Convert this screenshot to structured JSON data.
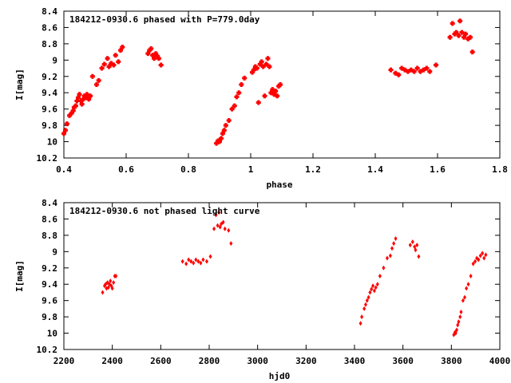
{
  "chart_data": [
    {
      "type": "scatter",
      "title": "184212-0930.6 phased with P=779.0day",
      "xlabel": "phase",
      "ylabel": "I[mag]",
      "xlim": [
        0.4,
        1.8
      ],
      "ylim": [
        8.4,
        10.2
      ],
      "y_inverted": true,
      "grid": false,
      "legend": "none",
      "marker": "plus",
      "color": "#ff0000",
      "xticks": [
        "0.4",
        "0.6",
        "0.8",
        "1",
        "1.2",
        "1.4",
        "1.6",
        "1.8"
      ],
      "yticks": [
        "8.4",
        "8.6",
        "8.8",
        "9",
        "9.2",
        "9.4",
        "9.6",
        "9.8",
        "10",
        "10.2"
      ],
      "series": [
        {
          "x": [
            0.4,
            0.405,
            0.41,
            0.418,
            0.425,
            0.43,
            0.433,
            0.438,
            0.442,
            0.446,
            0.45,
            0.455,
            0.458,
            0.462,
            0.466,
            0.47,
            0.474,
            0.48,
            0.485,
            0.492,
            0.505,
            0.512,
            0.522,
            0.53,
            0.54,
            0.545,
            0.552,
            0.56,
            0.566,
            0.575,
            0.582,
            0.588,
            0.67,
            0.675,
            0.68,
            0.685,
            0.69,
            0.695,
            0.7,
            0.705,
            0.712,
            0.89,
            0.895,
            0.9,
            0.905,
            0.91,
            0.915,
            0.92,
            0.93,
            0.94,
            0.948,
            0.955,
            0.962,
            0.97,
            0.98,
            1.005,
            1.01,
            1.015,
            1.02,
            1.025,
            1.03,
            1.035,
            1.04,
            1.045,
            1.05,
            1.055,
            1.06,
            1.065,
            1.07,
            1.075,
            1.08,
            1.085,
            1.09,
            1.095,
            1.45,
            1.465,
            1.475,
            1.485,
            1.495,
            1.505,
            1.515,
            1.525,
            1.535,
            1.545,
            1.555,
            1.565,
            1.575,
            1.595,
            1.64,
            1.648,
            1.655,
            1.66,
            1.668,
            1.672,
            1.678,
            1.685,
            1.69,
            1.698,
            1.705,
            1.712
          ],
          "y": [
            9.9,
            9.86,
            9.78,
            9.68,
            9.65,
            9.62,
            9.58,
            9.56,
            9.5,
            9.46,
            9.42,
            9.5,
            9.54,
            9.48,
            9.44,
            9.46,
            9.42,
            9.48,
            9.44,
            9.2,
            9.3,
            9.25,
            9.1,
            9.05,
            8.98,
            9.08,
            9.04,
            9.06,
            8.94,
            9.02,
            8.88,
            8.84,
            8.92,
            8.88,
            8.86,
            8.94,
            8.98,
            8.92,
            8.95,
            8.98,
            9.06,
            10.02,
            9.99,
            10.0,
            9.96,
            9.9,
            9.86,
            9.8,
            9.74,
            9.6,
            9.56,
            9.45,
            9.4,
            9.3,
            9.22,
            9.15,
            9.12,
            9.08,
            9.1,
            9.52,
            9.05,
            9.02,
            9.08,
            9.44,
            9.05,
            8.98,
            9.08,
            9.4,
            9.36,
            9.42,
            9.38,
            9.44,
            9.32,
            9.3,
            9.12,
            9.16,
            9.18,
            9.1,
            9.12,
            9.14,
            9.12,
            9.14,
            9.1,
            9.14,
            9.12,
            9.1,
            9.14,
            9.06,
            8.72,
            8.55,
            8.68,
            8.66,
            8.7,
            8.52,
            8.66,
            8.72,
            8.68,
            8.74,
            8.72,
            8.9
          ]
        }
      ]
    },
    {
      "type": "scatter",
      "title": "184212-0930.6 not phased light curve",
      "xlabel": "hjd0",
      "ylabel": "I[mag]",
      "xlim": [
        2200,
        4000
      ],
      "ylim": [
        8.4,
        10.2
      ],
      "y_inverted": true,
      "grid": false,
      "legend": "none",
      "marker": "diamond",
      "color": "#ff0000",
      "xticks": [
        "2200",
        "2400",
        "2600",
        "2800",
        "3000",
        "3200",
        "3400",
        "3600",
        "3800",
        "4000"
      ],
      "yticks": [
        "8.4",
        "8.6",
        "8.8",
        "9",
        "9.2",
        "9.4",
        "9.6",
        "9.8",
        "10",
        "10.2"
      ],
      "series": [
        {
          "x": [
            2360,
            2368,
            2372,
            2376,
            2380,
            2384,
            2388,
            2392,
            2396,
            2400,
            2405,
            2410,
            2415,
            2690,
            2705,
            2715,
            2725,
            2735,
            2745,
            2755,
            2765,
            2775,
            2790,
            2805,
            2820,
            2828,
            2835,
            2840,
            2845,
            2850,
            2858,
            2865,
            2880,
            2890,
            3425,
            3430,
            3440,
            3446,
            3452,
            3458,
            3464,
            3470,
            3476,
            3482,
            3488,
            3495,
            3505,
            3520,
            3535,
            3548,
            3555,
            3562,
            3570,
            3630,
            3640,
            3648,
            3652,
            3658,
            3665,
            3810,
            3815,
            3818,
            3822,
            3826,
            3830,
            3836,
            3840,
            3848,
            3855,
            3862,
            3870,
            3880,
            3890,
            3898,
            3905,
            3912,
            3920,
            3928,
            3935,
            3942
          ],
          "y": [
            9.5,
            9.42,
            9.4,
            9.45,
            9.38,
            9.44,
            9.4,
            9.36,
            9.42,
            9.45,
            9.38,
            9.3,
            9.3,
            9.12,
            9.15,
            9.1,
            9.12,
            9.14,
            9.1,
            9.12,
            9.14,
            9.1,
            9.12,
            9.06,
            8.72,
            8.55,
            8.68,
            8.52,
            8.7,
            8.66,
            8.64,
            8.72,
            8.74,
            8.9,
            9.88,
            9.8,
            9.7,
            9.65,
            9.6,
            9.56,
            9.5,
            9.46,
            9.42,
            9.48,
            9.44,
            9.4,
            9.3,
            9.2,
            9.08,
            9.05,
            8.96,
            8.9,
            8.84,
            8.92,
            8.88,
            8.94,
            8.98,
            8.92,
            9.06,
            10.02,
            9.99,
            10.0,
            9.96,
            9.9,
            9.86,
            9.8,
            9.74,
            9.6,
            9.56,
            9.45,
            9.4,
            9.3,
            9.15,
            9.12,
            9.08,
            9.1,
            9.05,
            9.02,
            9.08,
            9.04
          ]
        }
      ]
    }
  ]
}
